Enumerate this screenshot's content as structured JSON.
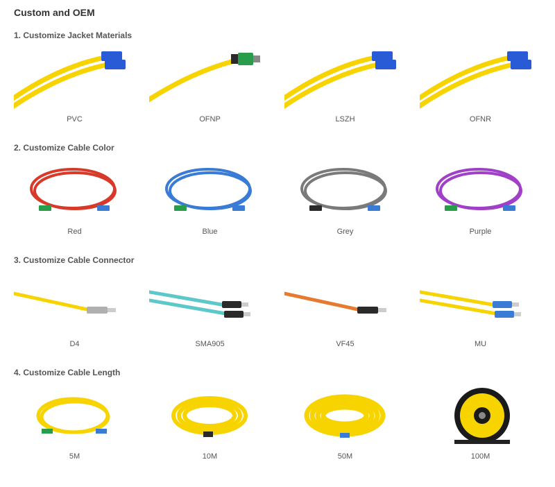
{
  "page_title": "Custom and OEM",
  "colors": {
    "cable_yellow": "#f7d400",
    "cable_red": "#d83a2a",
    "cable_blue": "#3a7bd5",
    "cable_grey": "#7a7a7a",
    "cable_purple": "#a040c8",
    "cable_aqua": "#5ec8c8",
    "cable_orange": "#e67a2e",
    "connector_blue": "#2a5bd7",
    "connector_green": "#2a9d4a",
    "connector_silver": "#b0b0b0",
    "connector_black": "#2a2a2a",
    "spool_black": "#1a1a1a"
  },
  "sections": [
    {
      "title": "1. Customize Jacket Materials",
      "items": [
        {
          "label": "PVC",
          "cable": "#f7d400",
          "conn": "#2a5bd7",
          "style": "curve_dual"
        },
        {
          "label": "OFNP",
          "cable": "#f7d400",
          "conn": "#2a9d4a",
          "style": "curve_single_dark"
        },
        {
          "label": "LSZH",
          "cable": "#f7d400",
          "conn": "#2a5bd7",
          "style": "curve_dual"
        },
        {
          "label": "OFNR",
          "cable": "#f7d400",
          "conn": "#2a5bd7",
          "style": "curve_dual"
        }
      ]
    },
    {
      "title": "2. Customize Cable Color",
      "items": [
        {
          "label": "Red",
          "cable": "#d83a2a",
          "conn": "#2a9d4a",
          "style": "loop"
        },
        {
          "label": "Blue",
          "cable": "#3a7bd5",
          "conn": "#2a9d4a",
          "style": "loop"
        },
        {
          "label": "Grey",
          "cable": "#7a7a7a",
          "conn": "#2a2a2a",
          "style": "loop"
        },
        {
          "label": "Purple",
          "cable": "#a040c8",
          "conn": "#2a9d4a",
          "style": "loop"
        }
      ]
    },
    {
      "title": "3. Customize Cable Connector",
      "items": [
        {
          "label": "D4",
          "cable": "#f7d400",
          "conn": "#b0b0b0",
          "style": "straight_single"
        },
        {
          "label": "SMA905",
          "cable": "#5ec8c8",
          "conn": "#2a2a2a",
          "style": "straight_dual"
        },
        {
          "label": "VF45",
          "cable": "#e67a2e",
          "conn": "#2a2a2a",
          "style": "straight_single"
        },
        {
          "label": "MU",
          "cable": "#f7d400",
          "conn": "#3a7bd5",
          "style": "straight_dual"
        }
      ]
    },
    {
      "title": "4. Customize Cable Length",
      "items": [
        {
          "label": "5M",
          "cable": "#f7d400",
          "conn": "#2a9d4a",
          "style": "coil_small"
        },
        {
          "label": "10M",
          "cable": "#f7d400",
          "conn": "#2a2a2a",
          "style": "coil_med"
        },
        {
          "label": "50M",
          "cable": "#f7d400",
          "conn": "#3a7bd5",
          "style": "coil_large"
        },
        {
          "label": "100M",
          "cable": "#f7d400",
          "conn": "#1a1a1a",
          "style": "spool"
        }
      ]
    }
  ]
}
